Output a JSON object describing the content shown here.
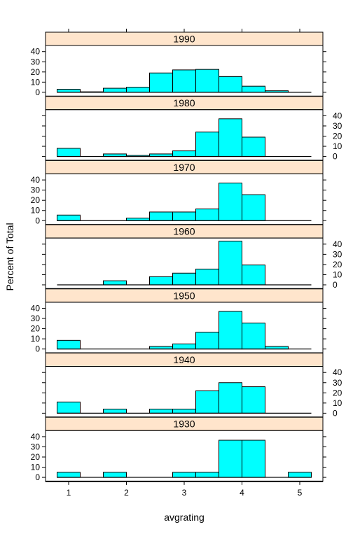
{
  "chart_data": {
    "type": "bar",
    "subtype": "histogram-lattice",
    "xlabel": "avgrating",
    "ylabel": "Percent of Total",
    "xlim": [
      0.6,
      5.4
    ],
    "ylim": [
      -4,
      46
    ],
    "x_ticks": [
      "1",
      "2",
      "3",
      "4",
      "5"
    ],
    "y_ticks": [
      "0",
      "10",
      "20",
      "30",
      "40"
    ],
    "bin_edges": [
      0.8,
      1.2,
      1.6,
      2.0,
      2.4,
      2.8,
      3.2,
      3.6,
      4.0,
      4.4,
      4.8,
      5.2
    ],
    "bar_color": "#00ffff",
    "strip_color": "#ffe5cc",
    "panels": [
      {
        "label": "1990",
        "values": [
          3,
          0.5,
          4,
          5,
          19,
          22,
          22.5,
          15.5,
          6,
          1.5,
          0
        ]
      },
      {
        "label": "1980",
        "values": [
          8,
          0,
          2.5,
          1,
          2.5,
          5.5,
          24,
          37,
          19,
          0,
          0
        ]
      },
      {
        "label": "1970",
        "values": [
          5.5,
          0,
          0,
          2.5,
          8.5,
          8.5,
          11.5,
          37,
          25.5,
          0,
          0
        ]
      },
      {
        "label": "1960",
        "values": [
          0,
          0,
          4,
          0,
          8,
          11.5,
          15.5,
          43,
          19.5,
          0,
          0
        ]
      },
      {
        "label": "1950",
        "values": [
          8.5,
          0,
          0,
          0,
          2.5,
          5,
          16.5,
          37,
          25.5,
          2.5,
          0
        ]
      },
      {
        "label": "1940",
        "values": [
          11,
          0,
          4,
          0,
          4,
          4,
          22,
          30,
          26,
          0,
          0
        ]
      },
      {
        "label": "1930",
        "values": [
          5,
          0,
          5,
          0,
          0,
          5,
          5,
          36.5,
          36.5,
          0,
          5
        ]
      }
    ]
  }
}
